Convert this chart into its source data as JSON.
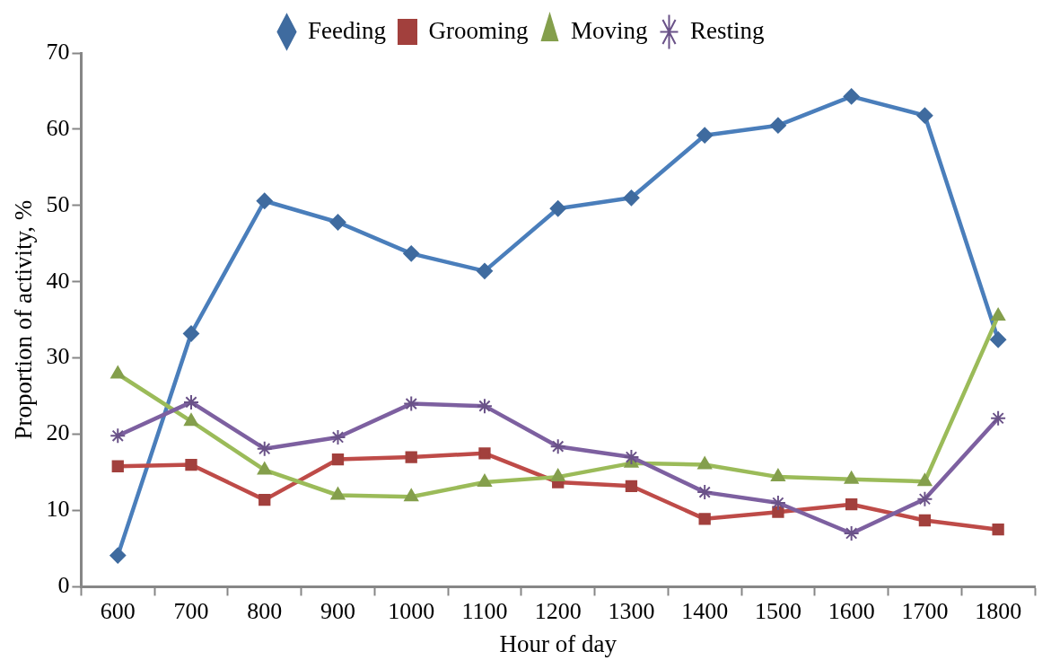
{
  "chart_data": {
    "type": "line",
    "xlabel": "Hour of day",
    "ylabel": "Proportion of activity, %",
    "categories": [
      "600",
      "700",
      "800",
      "900",
      "1000",
      "1100",
      "1200",
      "1300",
      "1400",
      "1500",
      "1600",
      "1700",
      "1800"
    ],
    "series": [
      {
        "name": "Feeding",
        "color": "#4a7ebb",
        "marker": "diamond",
        "values": [
          4.1,
          33.2,
          50.6,
          47.8,
          43.7,
          41.4,
          49.6,
          51.0,
          59.2,
          60.5,
          64.3,
          61.8,
          32.4
        ]
      },
      {
        "name": "Grooming",
        "color": "#be4b48",
        "marker": "square",
        "values": [
          15.8,
          16.0,
          11.4,
          16.7,
          17.0,
          17.5,
          13.7,
          13.2,
          8.9,
          9.8,
          10.8,
          8.7,
          7.5
        ]
      },
      {
        "name": "Moving",
        "color": "#9bbb59",
        "marker": "triangle",
        "values": [
          27.9,
          21.7,
          15.3,
          12.0,
          11.8,
          13.7,
          14.4,
          16.2,
          16.0,
          14.4,
          14.1,
          13.8,
          35.5
        ]
      },
      {
        "name": "Resting",
        "color": "#7d60a0",
        "marker": "cross",
        "values": [
          19.8,
          24.2,
          18.1,
          19.6,
          24.0,
          23.7,
          18.4,
          17.0,
          12.4,
          11.0,
          7.0,
          11.5,
          22.1
        ]
      }
    ],
    "ylim": [
      0,
      70
    ],
    "yticks": [
      0,
      10,
      20,
      30,
      40,
      50,
      60,
      70
    ],
    "grid": false,
    "legend": "top",
    "line_style": "solid"
  }
}
